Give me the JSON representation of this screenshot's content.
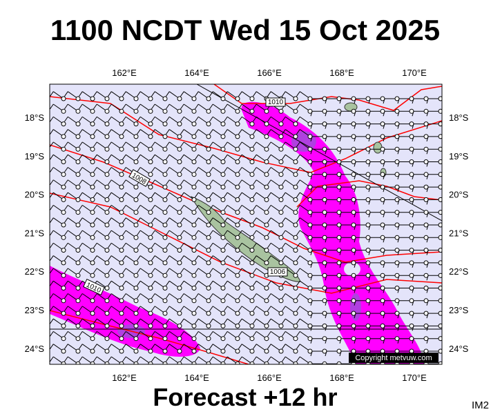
{
  "header": {
    "title": "1100 NCDT Wed 15 Oct 2025"
  },
  "map": {
    "lon_labels": [
      "162°E",
      "164°E",
      "166°E",
      "168°E",
      "170°E"
    ],
    "lat_labels": [
      "18°S",
      "19°S",
      "20°S",
      "21°S",
      "22°S",
      "23°S",
      "24°S"
    ],
    "isobar_labels": [
      "1010",
      "1008",
      "1010",
      "1006"
    ],
    "copyright": "Copyright metvuw.com"
  },
  "footer": {
    "caption": "Forecast +12 hr",
    "image_id": "IM2"
  }
}
